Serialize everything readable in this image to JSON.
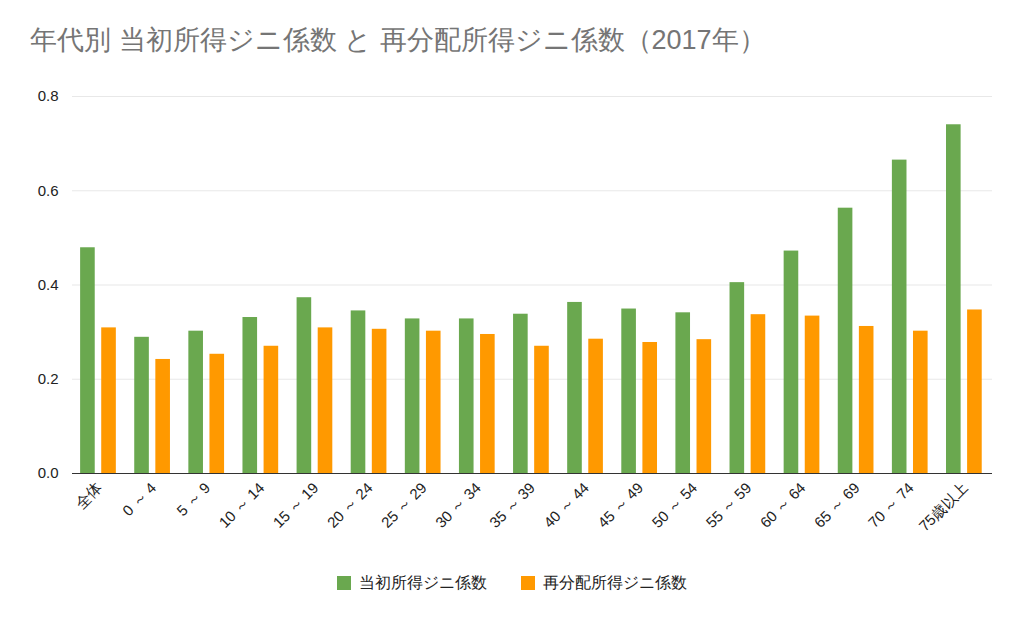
{
  "chart_data": {
    "type": "bar",
    "title": "年代別 当初所得ジニ係数 と 再分配所得ジニ係数（2017年）",
    "categories": [
      "全体",
      "0 ～ 4",
      "5 ～ 9",
      "10 ～ 14",
      "15 ～ 19",
      "20 ～ 24",
      "25 ～ 29",
      "30 ～ 34",
      "35 ～ 39",
      "40 ～ 44",
      "45 ～ 49",
      "50 ～ 54",
      "55 ～ 59",
      "60 ～ 64",
      "65 ～ 69",
      "70 ～ 74",
      "75歳以上"
    ],
    "series": [
      {
        "name": "当初所得ジニ係数",
        "color": "#6aa84f",
        "values": [
          0.479,
          0.289,
          0.302,
          0.331,
          0.373,
          0.345,
          0.328,
          0.328,
          0.338,
          0.363,
          0.349,
          0.341,
          0.405,
          0.472,
          0.563,
          0.665,
          0.74
        ]
      },
      {
        "name": "再分配所得ジニ係数",
        "color": "#ff9900",
        "values": [
          0.309,
          0.242,
          0.253,
          0.27,
          0.309,
          0.306,
          0.302,
          0.295,
          0.27,
          0.285,
          0.278,
          0.284,
          0.337,
          0.334,
          0.312,
          0.302,
          0.347
        ]
      }
    ],
    "ylim": [
      0,
      0.8
    ],
    "yticks": [
      {
        "value": 0,
        "label": "0.0"
      },
      {
        "value": 0.2,
        "label": "0.2"
      },
      {
        "value": 0.4,
        "label": "0.4"
      },
      {
        "value": 0.6,
        "label": "0.6"
      },
      {
        "value": 0.8,
        "label": "0.8"
      }
    ],
    "grid": true,
    "legend": "bottom"
  }
}
